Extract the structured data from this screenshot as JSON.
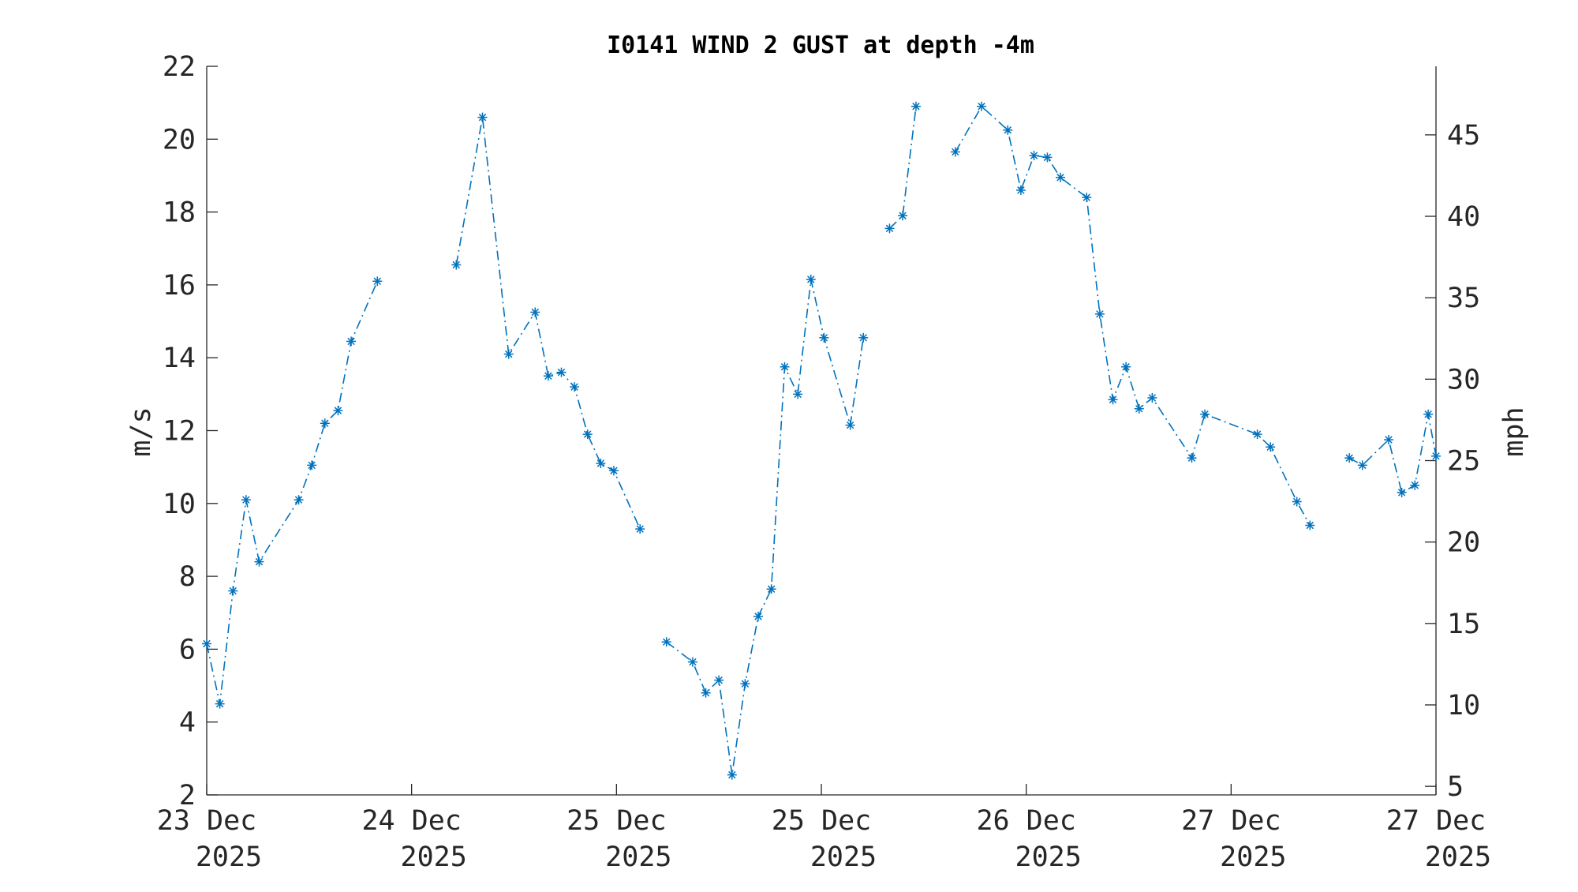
{
  "chart_data": {
    "type": "line",
    "title": "I0141 WIND 2 GUST at depth -4m",
    "ylabel": "m/s",
    "y2label": "mph",
    "ylim": [
      2,
      22
    ],
    "y2lim": [
      4.474,
      49.21
    ],
    "yticks": [
      2,
      4,
      6,
      8,
      10,
      12,
      14,
      16,
      18,
      20,
      22
    ],
    "y2ticks": [
      5,
      10,
      15,
      20,
      25,
      30,
      35,
      40,
      45
    ],
    "xlim": [
      0,
      6.0
    ],
    "xticks": [
      {
        "value": 0,
        "line1": "23 Dec",
        "line2": "2025"
      },
      {
        "value": 1,
        "line1": "24 Dec",
        "line2": "2025"
      },
      {
        "value": 2,
        "line1": "25 Dec",
        "line2": "2025"
      },
      {
        "value": 3,
        "line1": "25 Dec",
        "line2": "2025"
      },
      {
        "value": 4,
        "line1": "26 Dec",
        "line2": "2025"
      },
      {
        "value": 5,
        "line1": "27 Dec",
        "line2": "2025"
      },
      {
        "value": 6,
        "line1": "27 Dec",
        "line2": "2025"
      }
    ],
    "grid": false,
    "legend": "none",
    "marker": "asterisk",
    "line_style": "dash-dot",
    "color": "#0072BD",
    "series": [
      {
        "segments": [
          [
            [
              0.0,
              6.15
            ],
            [
              0.064,
              4.5
            ],
            [
              0.128,
              7.6
            ],
            [
              0.192,
              10.1
            ],
            [
              0.256,
              8.4
            ],
            [
              0.449,
              10.1
            ],
            [
              0.513,
              11.05
            ],
            [
              0.577,
              12.2
            ],
            [
              0.641,
              12.55
            ],
            [
              0.705,
              14.45
            ],
            [
              0.833,
              16.1
            ]
          ],
          [
            [
              1.218,
              16.55
            ],
            [
              1.346,
              20.6
            ],
            [
              1.474,
              14.1
            ],
            [
              1.603,
              15.25
            ],
            [
              1.667,
              13.5
            ],
            [
              1.731,
              13.6
            ],
            [
              1.795,
              13.2
            ],
            [
              1.859,
              11.9
            ],
            [
              1.923,
              11.1
            ],
            [
              1.987,
              10.9
            ],
            [
              2.115,
              9.3
            ]
          ],
          [
            [
              2.244,
              6.2
            ],
            [
              2.372,
              5.65
            ],
            [
              2.436,
              4.8
            ],
            [
              2.5,
              5.15
            ],
            [
              2.564,
              2.55
            ],
            [
              2.628,
              5.05
            ],
            [
              2.692,
              6.9
            ],
            [
              2.756,
              7.65
            ],
            [
              2.821,
              13.75
            ],
            [
              2.885,
              13.0
            ],
            [
              2.949,
              16.15
            ],
            [
              3.013,
              14.55
            ],
            [
              3.141,
              12.15
            ],
            [
              3.205,
              14.55
            ]
          ],
          [
            [
              3.333,
              17.55
            ],
            [
              3.397,
              17.9
            ],
            [
              3.462,
              20.9
            ]
          ],
          [
            [
              3.654,
              19.65
            ],
            [
              3.782,
              20.9
            ],
            [
              3.91,
              20.25
            ],
            [
              3.974,
              18.6
            ],
            [
              4.038,
              19.55
            ],
            [
              4.103,
              19.5
            ],
            [
              4.167,
              18.95
            ],
            [
              4.295,
              18.4
            ],
            [
              4.359,
              15.2
            ],
            [
              4.423,
              12.85
            ],
            [
              4.487,
              13.75
            ],
            [
              4.551,
              12.6
            ],
            [
              4.615,
              12.9
            ],
            [
              4.808,
              11.25
            ],
            [
              4.872,
              12.45
            ],
            [
              5.128,
              11.9
            ],
            [
              5.192,
              11.55
            ],
            [
              5.321,
              10.05
            ],
            [
              5.385,
              9.4
            ]
          ],
          [
            [
              5.577,
              11.25
            ],
            [
              5.641,
              11.05
            ],
            [
              5.769,
              11.75
            ],
            [
              5.833,
              10.3
            ],
            [
              5.897,
              10.5
            ],
            [
              5.962,
              12.45
            ],
            [
              6.0,
              11.3
            ]
          ]
        ]
      }
    ]
  }
}
